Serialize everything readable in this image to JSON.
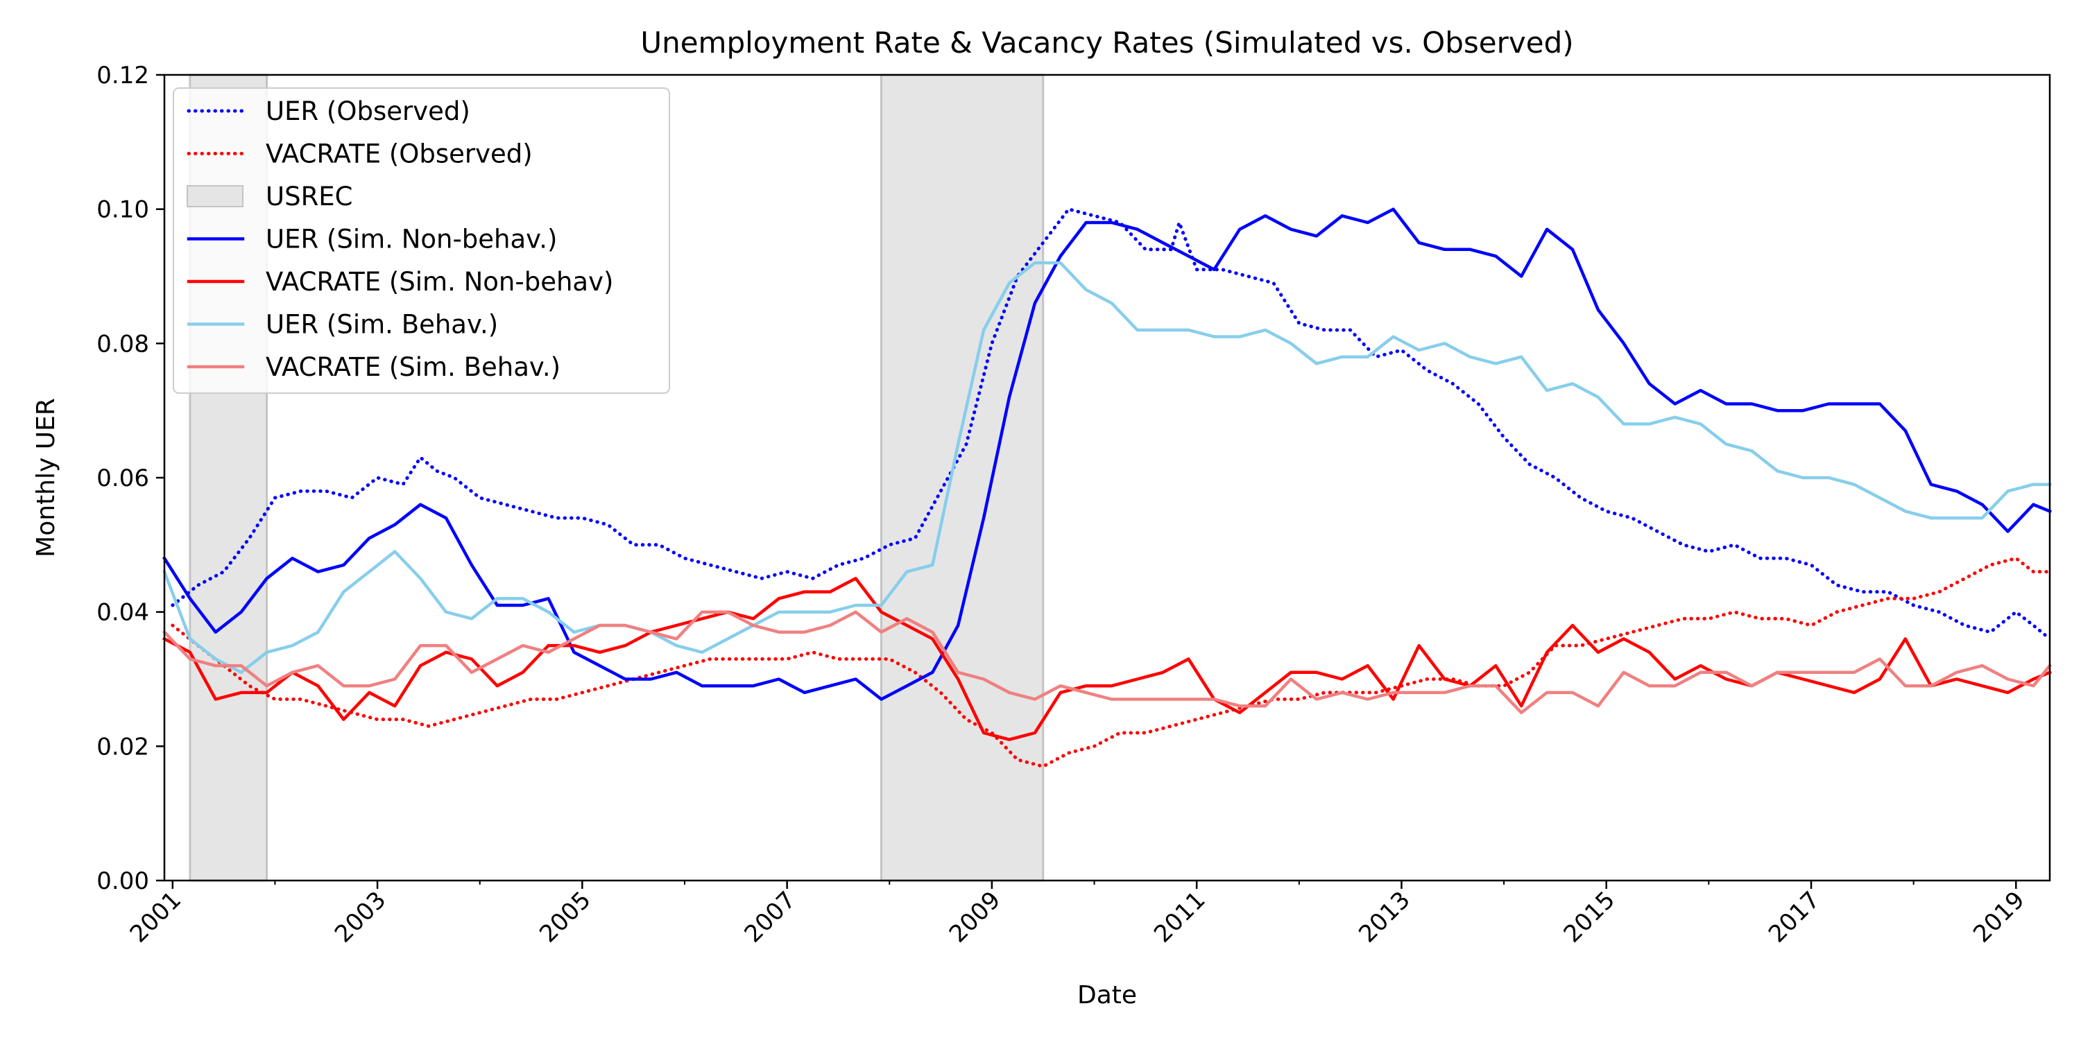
{
  "chart_data": {
    "type": "line",
    "title": "Unemployment Rate & Vacancy Rates (Simulated vs. Observed)",
    "xlabel": "Date",
    "ylabel": "Monthly UER",
    "xlim": [
      2000.92,
      2019.33
    ],
    "ylim": [
      0.0,
      0.12
    ],
    "xticks": [
      2001,
      2003,
      2005,
      2007,
      2009,
      2011,
      2013,
      2015,
      2017,
      2019
    ],
    "xtick_labels": [
      "2001",
      "2003",
      "2005",
      "2007",
      "2009",
      "2011",
      "2013",
      "2015",
      "2017",
      "2019"
    ],
    "yticks": [
      0.0,
      0.02,
      0.04,
      0.06,
      0.08,
      0.1,
      0.12
    ],
    "ytick_labels": [
      "0.00",
      "0.02",
      "0.04",
      "0.06",
      "0.08",
      "0.10",
      "0.12"
    ],
    "grid": false,
    "legend_position": "top-left",
    "recessions": [
      {
        "name": "USREC",
        "start": 2001.17,
        "end": 2001.92
      },
      {
        "name": "USREC",
        "start": 2007.92,
        "end": 2009.5
      }
    ],
    "series": [
      {
        "name": "UER (Observed)",
        "color": "#0000ff",
        "style": "dotted",
        "x": [
          2001.0,
          2001.25,
          2001.5,
          2001.75,
          2002.0,
          2002.25,
          2002.5,
          2002.75,
          2003.0,
          2003.25,
          2003.42,
          2003.58,
          2003.75,
          2004.0,
          2004.25,
          2004.5,
          2004.75,
          2005.0,
          2005.25,
          2005.5,
          2005.75,
          2006.0,
          2006.25,
          2006.5,
          2006.75,
          2007.0,
          2007.25,
          2007.5,
          2007.75,
          2008.0,
          2008.25,
          2008.5,
          2008.75,
          2009.0,
          2009.25,
          2009.5,
          2009.75,
          2010.0,
          2010.25,
          2010.5,
          2010.75,
          2010.83,
          2011.0,
          2011.25,
          2011.5,
          2011.75,
          2012.0,
          2012.25,
          2012.5,
          2012.75,
          2013.0,
          2013.25,
          2013.5,
          2013.75,
          2014.0,
          2014.25,
          2014.5,
          2014.75,
          2015.0,
          2015.25,
          2015.5,
          2015.75,
          2016.0,
          2016.25,
          2016.5,
          2016.75,
          2017.0,
          2017.25,
          2017.5,
          2017.75,
          2018.0,
          2018.25,
          2018.5,
          2018.75,
          2019.0,
          2019.17,
          2019.33
        ],
        "y": [
          0.041,
          0.044,
          0.046,
          0.051,
          0.057,
          0.058,
          0.058,
          0.057,
          0.06,
          0.059,
          0.063,
          0.061,
          0.06,
          0.057,
          0.056,
          0.055,
          0.054,
          0.054,
          0.053,
          0.05,
          0.05,
          0.048,
          0.047,
          0.046,
          0.045,
          0.046,
          0.045,
          0.047,
          0.048,
          0.05,
          0.051,
          0.058,
          0.065,
          0.08,
          0.09,
          0.095,
          0.1,
          0.099,
          0.098,
          0.094,
          0.094,
          0.098,
          0.091,
          0.091,
          0.09,
          0.089,
          0.083,
          0.082,
          0.082,
          0.078,
          0.079,
          0.076,
          0.074,
          0.071,
          0.066,
          0.062,
          0.06,
          0.057,
          0.055,
          0.054,
          0.052,
          0.05,
          0.049,
          0.05,
          0.048,
          0.048,
          0.047,
          0.044,
          0.043,
          0.043,
          0.041,
          0.04,
          0.038,
          0.037,
          0.04,
          0.038,
          0.036
        ]
      },
      {
        "name": "VACRATE (Observed)",
        "color": "#ff0000",
        "style": "dotted",
        "x": [
          2001.0,
          2001.25,
          2001.5,
          2001.75,
          2002.0,
          2002.25,
          2002.5,
          2002.75,
          2003.0,
          2003.25,
          2003.5,
          2003.75,
          2004.0,
          2004.25,
          2004.5,
          2004.75,
          2005.0,
          2005.25,
          2005.5,
          2005.75,
          2006.0,
          2006.25,
          2006.5,
          2006.75,
          2007.0,
          2007.25,
          2007.5,
          2007.75,
          2008.0,
          2008.25,
          2008.5,
          2008.75,
          2009.0,
          2009.25,
          2009.5,
          2009.75,
          2010.0,
          2010.25,
          2010.5,
          2010.75,
          2011.0,
          2011.25,
          2011.5,
          2011.75,
          2012.0,
          2012.25,
          2012.5,
          2012.75,
          2013.0,
          2013.25,
          2013.5,
          2013.75,
          2014.0,
          2014.25,
          2014.5,
          2014.75,
          2015.0,
          2015.25,
          2015.5,
          2015.75,
          2016.0,
          2016.25,
          2016.5,
          2016.75,
          2017.0,
          2017.25,
          2017.5,
          2017.75,
          2018.0,
          2018.25,
          2018.5,
          2018.75,
          2019.0,
          2019.17,
          2019.33
        ],
        "y": [
          0.038,
          0.035,
          0.032,
          0.029,
          0.027,
          0.027,
          0.026,
          0.025,
          0.024,
          0.024,
          0.023,
          0.024,
          0.025,
          0.026,
          0.027,
          0.027,
          0.028,
          0.029,
          0.03,
          0.031,
          0.032,
          0.033,
          0.033,
          0.033,
          0.033,
          0.034,
          0.033,
          0.033,
          0.033,
          0.031,
          0.028,
          0.024,
          0.022,
          0.018,
          0.017,
          0.019,
          0.02,
          0.022,
          0.022,
          0.023,
          0.024,
          0.025,
          0.026,
          0.027,
          0.027,
          0.028,
          0.028,
          0.028,
          0.029,
          0.03,
          0.03,
          0.029,
          0.029,
          0.031,
          0.035,
          0.035,
          0.036,
          0.037,
          0.038,
          0.039,
          0.039,
          0.04,
          0.039,
          0.039,
          0.038,
          0.04,
          0.041,
          0.042,
          0.042,
          0.043,
          0.045,
          0.047,
          0.048,
          0.046,
          0.046
        ]
      },
      {
        "name": "UER (Sim. Non-behav.)",
        "color": "#0000ff",
        "style": "solid",
        "x": [
          2000.92,
          2001.17,
          2001.42,
          2001.67,
          2001.92,
          2002.17,
          2002.42,
          2002.67,
          2002.92,
          2003.17,
          2003.42,
          2003.67,
          2003.92,
          2004.17,
          2004.42,
          2004.67,
          2004.92,
          2005.17,
          2005.42,
          2005.67,
          2005.92,
          2006.17,
          2006.42,
          2006.67,
          2006.92,
          2007.17,
          2007.42,
          2007.67,
          2007.92,
          2008.17,
          2008.42,
          2008.67,
          2008.92,
          2009.17,
          2009.42,
          2009.67,
          2009.92,
          2010.17,
          2010.42,
          2010.67,
          2010.92,
          2011.17,
          2011.42,
          2011.67,
          2011.92,
          2012.17,
          2012.42,
          2012.67,
          2012.92,
          2013.17,
          2013.42,
          2013.67,
          2013.92,
          2014.17,
          2014.42,
          2014.67,
          2014.92,
          2015.17,
          2015.42,
          2015.67,
          2015.92,
          2016.17,
          2016.42,
          2016.67,
          2016.92,
          2017.17,
          2017.42,
          2017.67,
          2017.92,
          2018.17,
          2018.42,
          2018.67,
          2018.92,
          2019.17,
          2019.33
        ],
        "y": [
          0.048,
          0.042,
          0.037,
          0.04,
          0.045,
          0.048,
          0.046,
          0.047,
          0.051,
          0.053,
          0.056,
          0.054,
          0.047,
          0.041,
          0.041,
          0.042,
          0.034,
          0.032,
          0.03,
          0.03,
          0.031,
          0.029,
          0.029,
          0.029,
          0.03,
          0.028,
          0.029,
          0.03,
          0.027,
          0.029,
          0.031,
          0.038,
          0.054,
          0.072,
          0.086,
          0.093,
          0.098,
          0.098,
          0.097,
          0.095,
          0.093,
          0.091,
          0.097,
          0.099,
          0.097,
          0.096,
          0.099,
          0.098,
          0.1,
          0.095,
          0.094,
          0.094,
          0.093,
          0.09,
          0.097,
          0.094,
          0.085,
          0.08,
          0.074,
          0.071,
          0.073,
          0.071,
          0.071,
          0.07,
          0.07,
          0.071,
          0.071,
          0.071,
          0.067,
          0.059,
          0.058,
          0.056,
          0.052,
          0.056,
          0.055
        ]
      },
      {
        "name": "VACRATE (Sim. Non-behav)",
        "color": "#ff0000",
        "style": "solid",
        "x": [
          2000.92,
          2001.17,
          2001.42,
          2001.67,
          2001.92,
          2002.17,
          2002.42,
          2002.67,
          2002.92,
          2003.17,
          2003.42,
          2003.67,
          2003.92,
          2004.17,
          2004.42,
          2004.67,
          2004.92,
          2005.17,
          2005.42,
          2005.67,
          2005.92,
          2006.17,
          2006.42,
          2006.67,
          2006.92,
          2007.17,
          2007.42,
          2007.67,
          2007.92,
          2008.17,
          2008.42,
          2008.67,
          2008.92,
          2009.17,
          2009.42,
          2009.67,
          2009.92,
          2010.17,
          2010.42,
          2010.67,
          2010.92,
          2011.17,
          2011.42,
          2011.67,
          2011.92,
          2012.17,
          2012.42,
          2012.67,
          2012.92,
          2013.17,
          2013.42,
          2013.67,
          2013.92,
          2014.17,
          2014.42,
          2014.67,
          2014.92,
          2015.17,
          2015.42,
          2015.67,
          2015.92,
          2016.17,
          2016.42,
          2016.67,
          2016.92,
          2017.17,
          2017.42,
          2017.67,
          2017.92,
          2018.17,
          2018.42,
          2018.67,
          2018.92,
          2019.17,
          2019.33
        ],
        "y": [
          0.036,
          0.034,
          0.027,
          0.028,
          0.028,
          0.031,
          0.029,
          0.024,
          0.028,
          0.026,
          0.032,
          0.034,
          0.033,
          0.029,
          0.031,
          0.035,
          0.035,
          0.034,
          0.035,
          0.037,
          0.038,
          0.039,
          0.04,
          0.039,
          0.042,
          0.043,
          0.043,
          0.045,
          0.04,
          0.038,
          0.036,
          0.03,
          0.022,
          0.021,
          0.022,
          0.028,
          0.029,
          0.029,
          0.03,
          0.031,
          0.033,
          0.027,
          0.025,
          0.028,
          0.031,
          0.031,
          0.03,
          0.032,
          0.027,
          0.035,
          0.03,
          0.029,
          0.032,
          0.026,
          0.034,
          0.038,
          0.034,
          0.036,
          0.034,
          0.03,
          0.032,
          0.03,
          0.029,
          0.031,
          0.03,
          0.029,
          0.028,
          0.03,
          0.036,
          0.029,
          0.03,
          0.029,
          0.028,
          0.03,
          0.031
        ]
      },
      {
        "name": "UER (Sim. Behav.)",
        "color": "#87ceeb",
        "style": "solid",
        "x": [
          2000.92,
          2001.17,
          2001.42,
          2001.67,
          2001.92,
          2002.17,
          2002.42,
          2002.67,
          2002.92,
          2003.17,
          2003.42,
          2003.67,
          2003.92,
          2004.17,
          2004.42,
          2004.67,
          2004.92,
          2005.17,
          2005.42,
          2005.67,
          2005.92,
          2006.17,
          2006.42,
          2006.67,
          2006.92,
          2007.17,
          2007.42,
          2007.67,
          2007.92,
          2008.17,
          2008.42,
          2008.67,
          2008.92,
          2009.17,
          2009.42,
          2009.67,
          2009.92,
          2010.17,
          2010.42,
          2010.67,
          2010.92,
          2011.17,
          2011.42,
          2011.67,
          2011.92,
          2012.17,
          2012.42,
          2012.67,
          2012.92,
          2013.17,
          2013.42,
          2013.67,
          2013.92,
          2014.17,
          2014.42,
          2014.67,
          2014.92,
          2015.17,
          2015.42,
          2015.67,
          2015.92,
          2016.17,
          2016.42,
          2016.67,
          2016.92,
          2017.17,
          2017.42,
          2017.67,
          2017.92,
          2018.17,
          2018.42,
          2018.67,
          2018.92,
          2019.17,
          2019.33
        ],
        "y": [
          0.046,
          0.036,
          0.033,
          0.031,
          0.034,
          0.035,
          0.037,
          0.043,
          0.046,
          0.049,
          0.045,
          0.04,
          0.039,
          0.042,
          0.042,
          0.04,
          0.037,
          0.038,
          0.038,
          0.037,
          0.035,
          0.034,
          0.036,
          0.038,
          0.04,
          0.04,
          0.04,
          0.041,
          0.041,
          0.046,
          0.047,
          0.065,
          0.082,
          0.089,
          0.092,
          0.092,
          0.088,
          0.086,
          0.082,
          0.082,
          0.082,
          0.081,
          0.081,
          0.082,
          0.08,
          0.077,
          0.078,
          0.078,
          0.081,
          0.079,
          0.08,
          0.078,
          0.077,
          0.078,
          0.073,
          0.074,
          0.072,
          0.068,
          0.068,
          0.069,
          0.068,
          0.065,
          0.064,
          0.061,
          0.06,
          0.06,
          0.059,
          0.057,
          0.055,
          0.054,
          0.054,
          0.054,
          0.058,
          0.059,
          0.059
        ]
      },
      {
        "name": "VACRATE (Sim. Behav.)",
        "color": "#f08080",
        "style": "solid",
        "x": [
          2000.92,
          2001.17,
          2001.42,
          2001.67,
          2001.92,
          2002.17,
          2002.42,
          2002.67,
          2002.92,
          2003.17,
          2003.42,
          2003.67,
          2003.92,
          2004.17,
          2004.42,
          2004.67,
          2004.92,
          2005.17,
          2005.42,
          2005.67,
          2005.92,
          2006.17,
          2006.42,
          2006.67,
          2006.92,
          2007.17,
          2007.42,
          2007.67,
          2007.92,
          2008.17,
          2008.42,
          2008.67,
          2008.92,
          2009.17,
          2009.42,
          2009.67,
          2009.92,
          2010.17,
          2010.42,
          2010.67,
          2010.92,
          2011.17,
          2011.42,
          2011.67,
          2011.92,
          2012.17,
          2012.42,
          2012.67,
          2012.92,
          2013.17,
          2013.42,
          2013.67,
          2013.92,
          2014.17,
          2014.42,
          2014.67,
          2014.92,
          2015.17,
          2015.42,
          2015.67,
          2015.92,
          2016.17,
          2016.42,
          2016.67,
          2016.92,
          2017.17,
          2017.42,
          2017.67,
          2017.92,
          2018.17,
          2018.42,
          2018.67,
          2018.92,
          2019.17,
          2019.33
        ],
        "y": [
          0.037,
          0.033,
          0.032,
          0.032,
          0.029,
          0.031,
          0.032,
          0.029,
          0.029,
          0.03,
          0.035,
          0.035,
          0.031,
          0.033,
          0.035,
          0.034,
          0.036,
          0.038,
          0.038,
          0.037,
          0.036,
          0.04,
          0.04,
          0.038,
          0.037,
          0.037,
          0.038,
          0.04,
          0.037,
          0.039,
          0.037,
          0.031,
          0.03,
          0.028,
          0.027,
          0.029,
          0.028,
          0.027,
          0.027,
          0.027,
          0.027,
          0.027,
          0.026,
          0.026,
          0.03,
          0.027,
          0.028,
          0.027,
          0.028,
          0.028,
          0.028,
          0.029,
          0.029,
          0.025,
          0.028,
          0.028,
          0.026,
          0.031,
          0.029,
          0.029,
          0.031,
          0.031,
          0.029,
          0.031,
          0.031,
          0.031,
          0.031,
          0.033,
          0.029,
          0.029,
          0.031,
          0.032,
          0.03,
          0.029,
          0.032
        ]
      }
    ]
  }
}
